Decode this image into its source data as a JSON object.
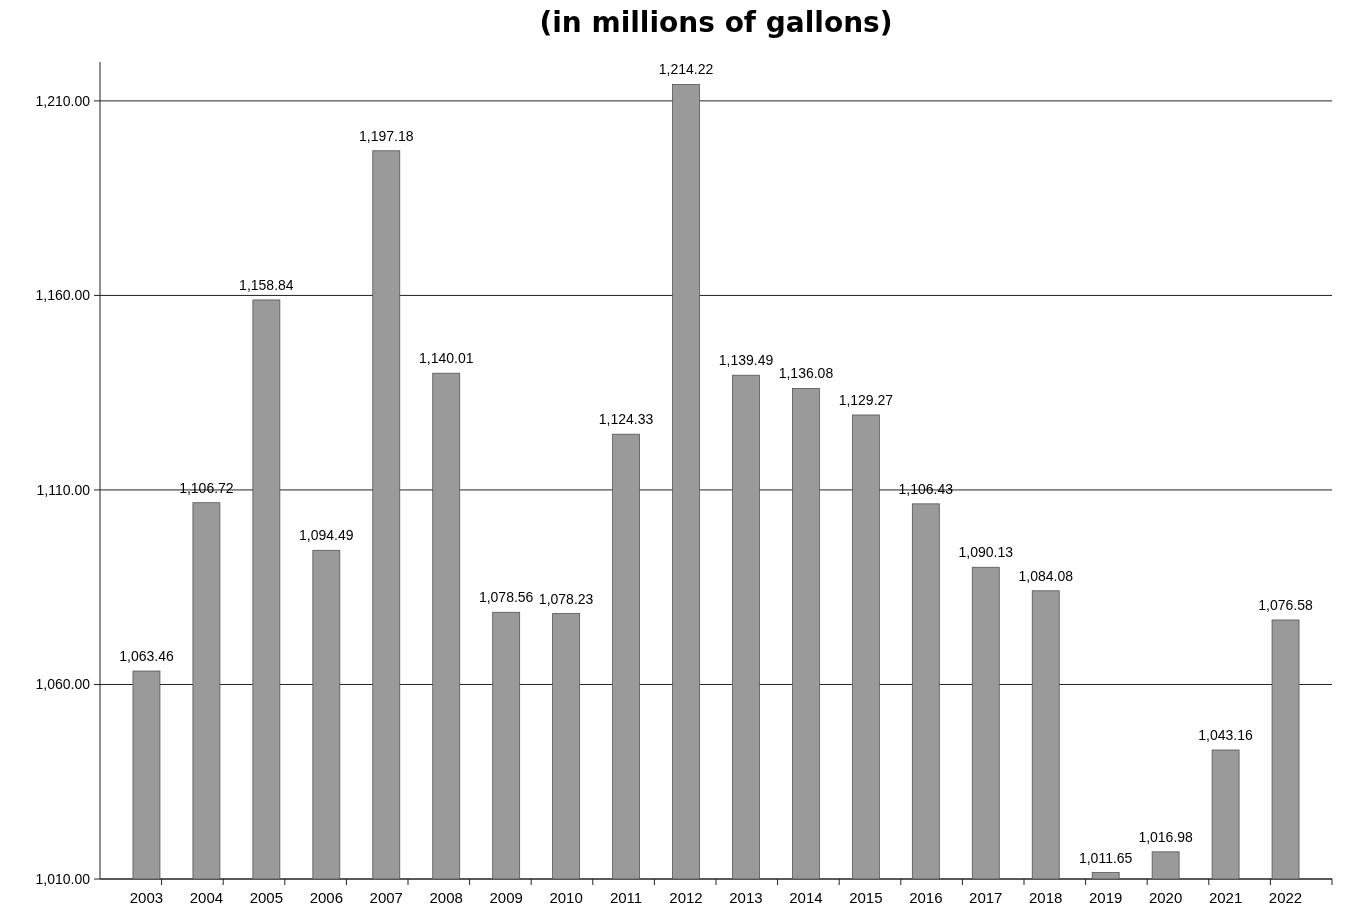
{
  "chart_data": {
    "type": "bar",
    "title": "(in millions of gallons)",
    "categories": [
      "2003",
      "2004",
      "2005",
      "2006",
      "2007",
      "2008",
      "2009",
      "2010",
      "2011",
      "2012",
      "2013",
      "2014",
      "2015",
      "2016",
      "2017",
      "2018",
      "2019",
      "2020",
      "2021",
      "2022"
    ],
    "values": [
      1063.46,
      1106.72,
      1158.84,
      1094.49,
      1197.18,
      1140.01,
      1078.56,
      1078.23,
      1124.33,
      1214.22,
      1139.49,
      1136.08,
      1129.27,
      1106.43,
      1090.13,
      1084.08,
      1011.65,
      1016.98,
      1043.16,
      1076.58
    ],
    "value_labels": [
      "1,063.46",
      "1,106.72",
      "1,158.84",
      "1,094.49",
      "1,197.18",
      "1,140.01",
      "1,078.56",
      "1,078.23",
      "1,124.33",
      "1,214.22",
      "1,139.49",
      "1,136.08",
      "1,129.27",
      "1,106.43",
      "1,090.13",
      "1,084.08",
      "1,011.65",
      "1,016.98",
      "1,043.16",
      "1,076.58"
    ],
    "color": "#9a9a9a",
    "ylim": [
      1010,
      1220
    ],
    "yticks": [
      {
        "value": 1010,
        "label": "1,010.00"
      },
      {
        "value": 1060,
        "label": "1,060.00"
      },
      {
        "value": 1110,
        "label": "1,110.00"
      },
      {
        "value": 1160,
        "label": "1,160.00"
      },
      {
        "value": 1210,
        "label": "1,210.00"
      }
    ],
    "grid": "y"
  }
}
